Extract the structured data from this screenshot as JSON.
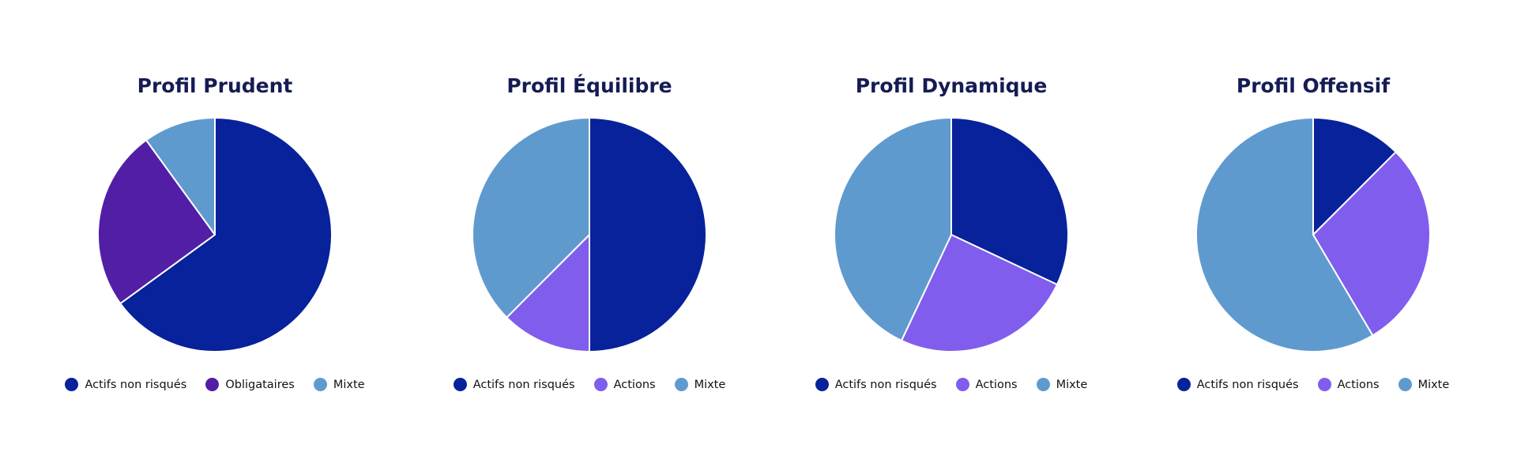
{
  "colors": {
    "actifs_non_risques": "#07229a",
    "obligataires": "#531ea6",
    "actions": "#805ded",
    "mixte": "#5f9acf"
  },
  "chart_data": [
    {
      "type": "pie",
      "title": "Profil Prudent",
      "slices": [
        {
          "label": "Actifs non risqués",
          "value": 65,
          "color": "#07229a"
        },
        {
          "label": "Obligataires",
          "value": 25,
          "color": "#531ea6"
        },
        {
          "label": "Mixte",
          "value": 10,
          "color": "#5f9acf"
        }
      ],
      "legend": [
        "Actifs non risqués",
        "Obligataires",
        "Mixte"
      ],
      "legend_position": "bottom"
    },
    {
      "type": "pie",
      "title": "Profil Équilibre",
      "slices": [
        {
          "label": "Actifs non risqués",
          "value": 50,
          "color": "#07229a"
        },
        {
          "label": "Actions",
          "value": 12.5,
          "color": "#805ded"
        },
        {
          "label": "Mixte",
          "value": 37.5,
          "color": "#5f9acf"
        }
      ],
      "legend": [
        "Actifs non risqués",
        "Actions",
        "Mixte"
      ],
      "legend_position": "bottom"
    },
    {
      "type": "pie",
      "title": "Profil Dynamique",
      "slices": [
        {
          "label": "Actifs non risqués",
          "value": 32,
          "color": "#07229a"
        },
        {
          "label": "Actions",
          "value": 25,
          "color": "#805ded"
        },
        {
          "label": "Mixte",
          "value": 43,
          "color": "#5f9acf"
        }
      ],
      "legend": [
        "Actifs non risqués",
        "Actions",
        "Mixte"
      ],
      "legend_position": "bottom"
    },
    {
      "type": "pie",
      "title": "Profil Offensif",
      "slices": [
        {
          "label": "Actifs non risqués",
          "value": 12.5,
          "color": "#07229a"
        },
        {
          "label": "Actions",
          "value": 29,
          "color": "#805ded"
        },
        {
          "label": "Mixte",
          "value": 58.5,
          "color": "#5f9acf"
        }
      ],
      "legend": [
        "Actifs non risqués",
        "Actions",
        "Mixte"
      ],
      "legend_position": "bottom"
    }
  ]
}
